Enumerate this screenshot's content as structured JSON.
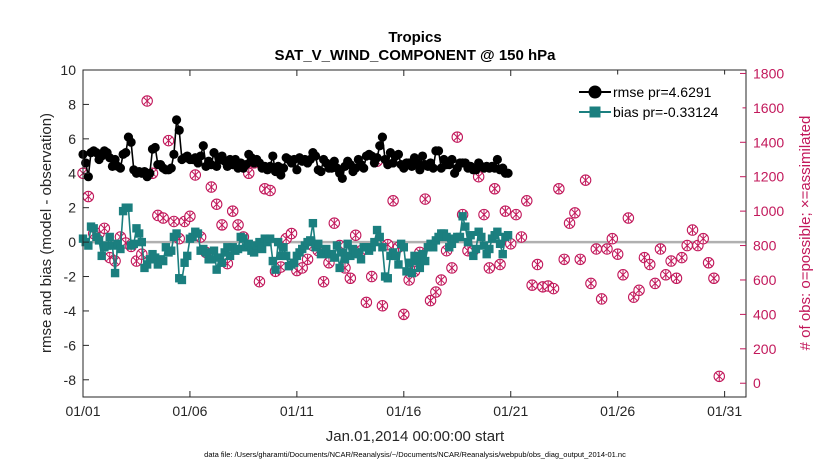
{
  "chart_data": {
    "type": "line",
    "title": "Tropics",
    "subtitle": "SAT_V_WIND_COMPONENT @ 150 hPa",
    "xlabel": "Jan.01,2014 00:00:00 start",
    "ylabel": "rmse and bias (model - observation)",
    "y2label": "# of obs: o=possible; ×=assimilated",
    "footnote": "data file: /Users/gharamti/Documents/NCAR/Reanalysis/~/Documents/NCAR/Reanalysis/webpub/obs_diag_output_2014-01.nc",
    "xlim": [
      0,
      31
    ],
    "ylim": [
      -9,
      10
    ],
    "y2lim": [
      -80,
      1820
    ],
    "xticks": [
      0,
      5,
      10,
      15,
      20,
      25,
      30
    ],
    "xtick_labels": [
      "01/01",
      "01/06",
      "01/11",
      "01/16",
      "01/21",
      "01/26",
      "01/31"
    ],
    "yticks": [
      -8,
      -6,
      -4,
      -2,
      0,
      2,
      4,
      6,
      8,
      10
    ],
    "y2ticks": [
      0,
      200,
      400,
      600,
      800,
      1000,
      1200,
      1400,
      1600,
      1800
    ],
    "zero_line": 0,
    "legend_position": "top-right",
    "colors": {
      "rmse": "#000000",
      "bias": "#1b7f7f",
      "obs": "#c2185b",
      "zero": "#b0b0b0"
    },
    "series": [
      {
        "name": "rmse pr=4.6291",
        "axis": "left",
        "marker": "circle",
        "step_days": 0.125,
        "values": [
          5.1,
          4.6,
          3.8,
          5.2,
          5.3,
          5.2,
          4.8,
          5.0,
          5.3,
          5.2,
          4.9,
          4.4,
          4.8,
          4.4,
          4.3,
          5.1,
          5.2,
          6.1,
          5.8,
          4.2,
          4.0,
          4.1,
          4.0,
          4.1,
          3.8,
          4.0,
          5.4,
          5.5,
          4.5,
          4.5,
          4.3,
          4.2,
          4.2,
          4.3,
          5.1,
          7.1,
          6.5,
          4.8,
          4.9,
          5.0,
          4.8,
          4.8,
          4.9,
          4.6,
          5.0,
          5.6,
          4.4,
          4.7,
          4.5,
          5.2,
          4.4,
          4.8,
          5.0,
          4.7,
          4.4,
          4.8,
          4.5,
          4.8,
          4.3,
          4.6,
          4.3,
          4.5,
          5.1,
          4.9,
          4.6,
          4.8,
          4.6,
          4.3,
          4.4,
          4.2,
          4.4,
          5.0,
          4.1,
          4.4,
          3.9,
          4.3,
          4.9,
          4.8,
          4.6,
          4.8,
          4.2,
          4.9,
          4.7,
          4.8,
          4.6,
          4.8,
          5.2,
          5.0,
          4.2,
          4.1,
          4.8,
          4.6,
          4.3,
          4.3,
          4.7,
          4.3,
          4.0,
          3.7,
          4.4,
          4.7,
          4.5,
          4.1,
          4.3,
          4.8,
          4.5,
          4.3,
          5.0,
          5.1,
          5.0,
          4.6,
          4.9,
          5.6,
          6.1,
          4.8,
          4.5,
          5.2,
          4.6,
          5.0,
          5.1,
          4.5,
          4.3,
          4.6,
          4.6,
          4.4,
          4.9,
          4.6,
          4.2,
          5.0,
          4.5,
          4.4,
          4.6,
          4.3,
          5.3,
          5.3,
          4.3,
          4.8,
          4.5,
          4.5,
          4.8,
          4.0,
          4.3,
          4.6,
          4.6,
          4.6,
          4.3,
          4.4,
          4.2,
          4.2,
          4.6,
          4.4,
          4.3,
          4.4,
          4.3,
          4.4,
          4.3,
          4.8,
          4.2,
          4.3,
          4.0,
          4.0
        ]
      },
      {
        "name": "bias pr=-0.33124",
        "axis": "left",
        "marker": "square",
        "step_days": 0.125,
        "values": [
          0.2,
          0.0,
          -0.2,
          0.9,
          0.8,
          0.3,
          0.1,
          -0.8,
          -0.3,
          -0.2,
          0.3,
          -0.2,
          -1.8,
          -0.1,
          -0.4,
          1.8,
          2.0,
          2.0,
          -0.2,
          -0.1,
          0.8,
          0.5,
          0.0,
          -1.5,
          -1.3,
          -1.0,
          -0.7,
          -0.9,
          -1.3,
          -1.0,
          -1.1,
          -0.3,
          -0.6,
          -0.5,
          0.3,
          0.5,
          -2.1,
          -2.2,
          -1.2,
          -0.8,
          0.2,
          0.3,
          0.6,
          0.5,
          -0.5,
          -0.4,
          -0.6,
          -1.0,
          -1.0,
          -0.5,
          -1.6,
          -0.9,
          -1.2,
          -0.6,
          -0.3,
          -0.8,
          -0.3,
          -0.5,
          -0.4,
          0.3,
          0.2,
          -0.3,
          -0.1,
          -0.5,
          -0.6,
          -0.2,
          0.0,
          -0.4,
          0.2,
          0.0,
          0.2,
          -1.1,
          -1.6,
          0.0,
          -0.8,
          -0.3,
          -0.8,
          -1.4,
          -1.3,
          -1.2,
          -0.8,
          -0.6,
          -0.4,
          -0.2,
          0.0,
          0.1,
          1.1,
          -0.3,
          -0.1,
          -0.7,
          -0.6,
          -0.4,
          -0.7,
          -0.7,
          -0.9,
          -0.2,
          -1.5,
          -0.6,
          -1.0,
          -0.1,
          -0.8,
          -0.4,
          -0.6,
          -0.7,
          -1.0,
          -0.3,
          -0.3,
          -0.5,
          -0.3,
          0.0,
          0.7,
          0.3,
          -0.3,
          -2.0,
          -2.1,
          -0.8,
          -0.6,
          -0.8,
          -1.3,
          -0.1,
          -0.3,
          -1.7,
          -1.2,
          -1.8,
          -0.8,
          -1.1,
          -1.5,
          -0.7,
          -1.1,
          -0.3,
          -0.1,
          -0.3,
          0.1,
          0.3,
          0.5,
          0.5,
          0.3,
          -0.3,
          -0.1,
          0.2,
          0.3,
          0.3,
          1.5,
          0.9,
          0.0,
          0.4,
          -0.8,
          -0.4,
          0.6,
          0.3,
          -0.2,
          -0.7,
          -0.4,
          0.2,
          0.4,
          0.6,
          -0.1,
          -0.7,
          0.3,
          0.4
        ]
      },
      {
        "name": "# of obs possible / assimilated",
        "axis": "right",
        "marker": "circle-x",
        "step_days": 0.25,
        "values": [
          1220,
          1085,
          870,
          870,
          900,
          730,
          710,
          850,
          815,
          795,
          710,
          750,
          1640,
          1220,
          975,
          960,
          1410,
          940,
          840,
          940,
          970,
          1210,
          850,
          760,
          1140,
          1040,
          920,
          695,
          1000,
          920,
          850,
          1220,
          1280,
          590,
          1130,
          1120,
          650,
          675,
          840,
          870,
          655,
          670,
          720,
          800,
          770,
          590,
          700,
          930,
          800,
          670,
          610,
          860,
          770,
          470,
          620,
          1290,
          450,
          805,
          1060,
          790,
          400,
          600,
          650,
          760,
          1070,
          480,
          530,
          600,
          770,
          670,
          1430,
          980,
          770,
          770,
          1200,
          980,
          670,
          1130,
          690,
          1000,
          810,
          980,
          850,
          1060,
          570,
          690,
          560,
          565,
          550,
          1130,
          720,
          930,
          990,
          720,
          1180,
          580,
          780,
          490,
          780,
          840,
          750,
          630,
          960,
          500,
          540,
          730,
          690,
          580,
          780,
          630,
          710,
          610,
          730,
          800,
          890,
          800,
          840,
          700,
          610,
          40
        ]
      }
    ]
  }
}
